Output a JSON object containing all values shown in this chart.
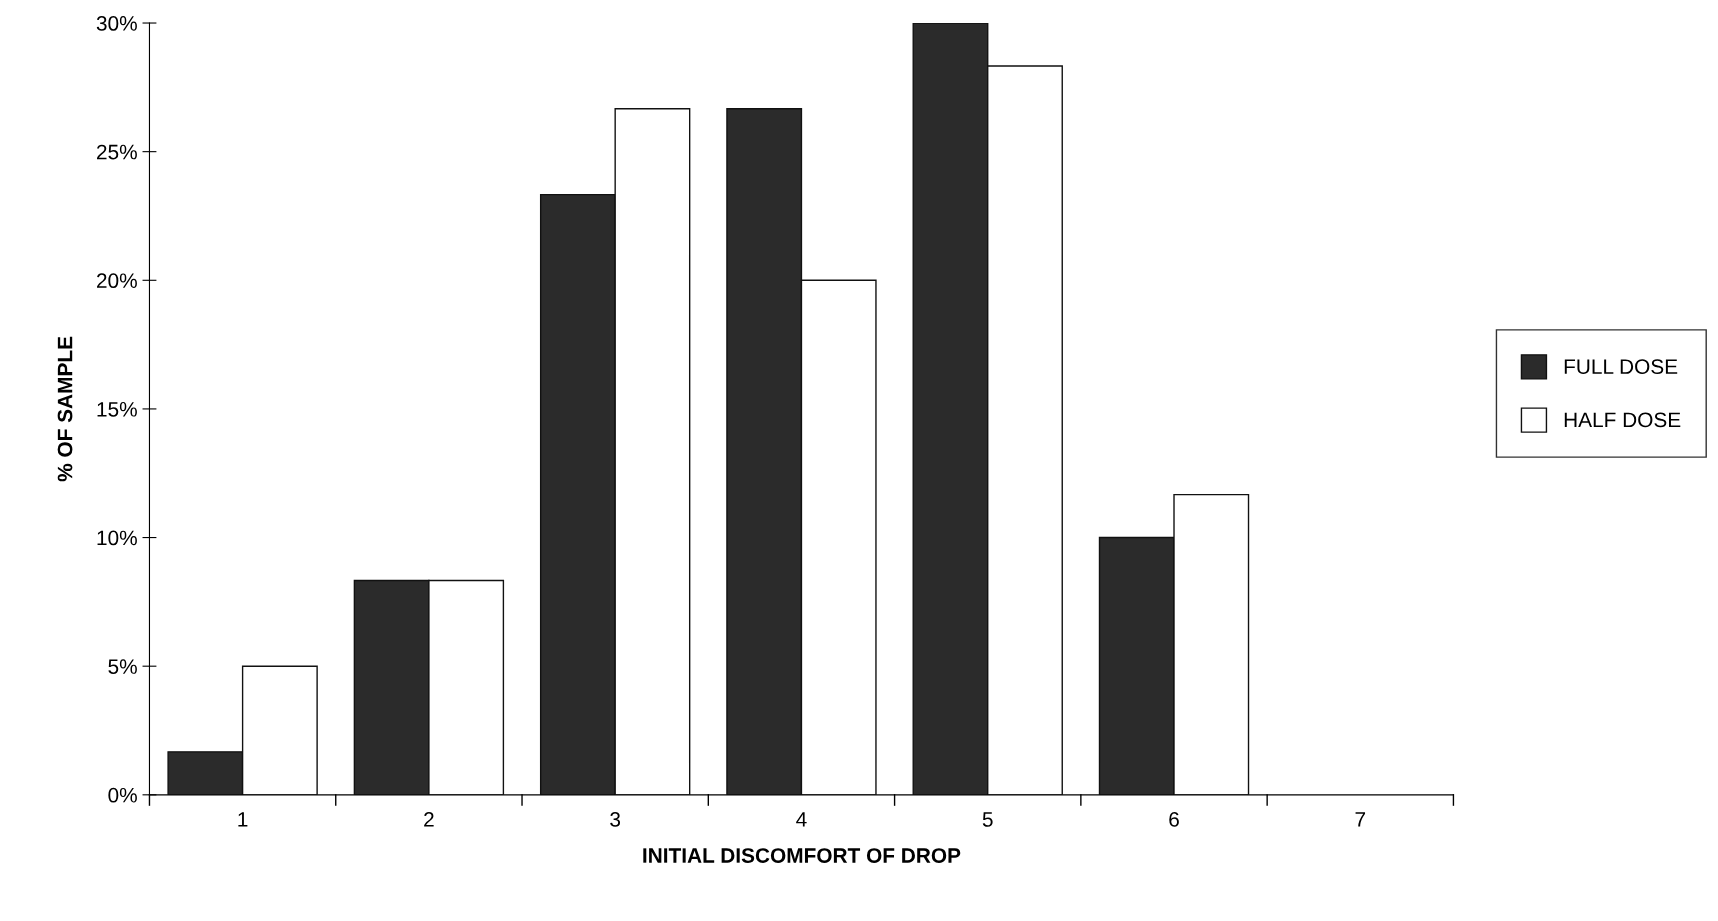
{
  "chart_data": {
    "type": "bar",
    "xlabel": "INITIAL DISCOMFORT OF DROP",
    "ylabel": "% OF SAMPLE",
    "categories": [
      "1",
      "2",
      "3",
      "4",
      "5",
      "6",
      "7"
    ],
    "series": [
      {
        "name": "FULL DOSE",
        "color": "#2b2b2b",
        "values": [
          1.67,
          8.33,
          23.33,
          26.67,
          30,
          10,
          0
        ]
      },
      {
        "name": "HALF DOSE",
        "color": "#ffffff",
        "values": [
          5,
          8.33,
          26.67,
          20,
          28.33,
          11.67,
          0
        ]
      }
    ],
    "ylim": [
      0,
      30
    ],
    "yticks": [
      {
        "value": 0,
        "label": "0%"
      },
      {
        "value": 5,
        "label": "5%"
      },
      {
        "value": 10,
        "label": "10%"
      },
      {
        "value": 15,
        "label": "15%"
      },
      {
        "value": 20,
        "label": "20%"
      },
      {
        "value": 25,
        "label": "25%"
      },
      {
        "value": 30,
        "label": "30%"
      }
    ],
    "grid": false,
    "legend": "right"
  }
}
